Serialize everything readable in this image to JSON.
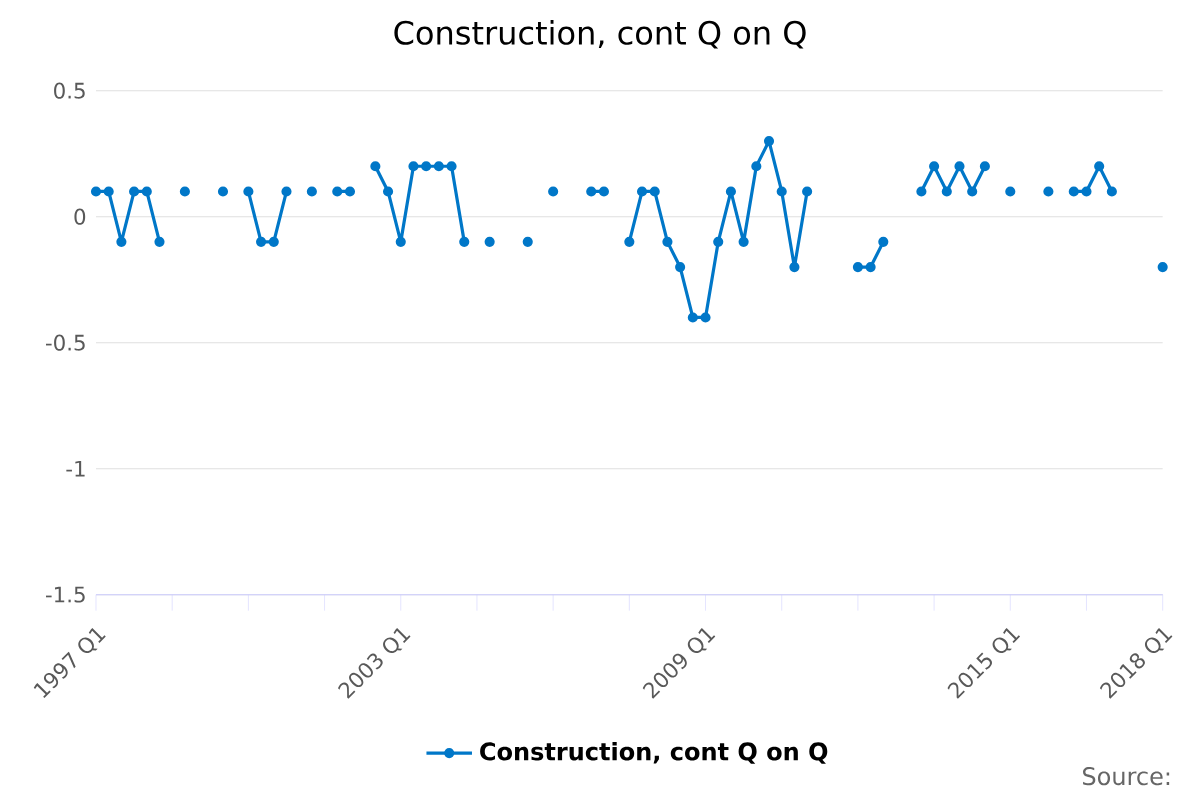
{
  "chart_data": {
    "type": "line",
    "title": "Construction, cont Q on Q",
    "x": [
      "1997-01",
      "1997-04",
      "1997-07",
      "1997-10",
      "1998-01",
      "1998-04",
      "1998-07",
      "1998-10",
      "1999-01",
      "1999-04",
      "1999-07",
      "1999-10",
      "2000-01",
      "2000-04",
      "2000-07",
      "2000-10",
      "2001-01",
      "2001-04",
      "2001-07",
      "2001-10",
      "2002-01",
      "2002-04",
      "2002-07",
      "2002-10",
      "2003-01",
      "2003-04",
      "2003-07",
      "2003-10",
      "2004-01",
      "2004-04",
      "2004-07",
      "2004-10",
      "2005-01",
      "2005-04",
      "2005-07",
      "2005-10",
      "2006-01",
      "2006-04",
      "2006-07",
      "2006-10",
      "2007-01",
      "2007-04",
      "2007-07",
      "2007-10",
      "2008-01",
      "2008-04",
      "2008-07",
      "2008-10",
      "2009-01",
      "2009-04",
      "2009-07",
      "2009-10",
      "2010-01",
      "2010-04",
      "2010-07",
      "2010-10",
      "2011-01",
      "2011-04",
      "2011-07",
      "2011-10",
      "2012-01",
      "2012-04",
      "2012-07",
      "2012-10",
      "2013-01",
      "2013-04",
      "2013-07",
      "2013-10",
      "2014-01",
      "2014-04",
      "2014-07",
      "2014-10",
      "2015-01",
      "2015-04",
      "2015-07",
      "2015-10",
      "2016-01",
      "2016-04",
      "2016-07",
      "2016-10",
      "2017-01",
      "2017-04",
      "2017-07",
      "2017-10",
      "2018-01"
    ],
    "series": [
      {
        "name": "Construction, cont Q on Q",
        "color": "#0077c8",
        "values": [
          0.1,
          0.1,
          -0.1,
          0.1,
          0.1,
          -0.1,
          null,
          0.1,
          null,
          null,
          0.1,
          null,
          0.1,
          -0.1,
          -0.1,
          0.1,
          null,
          0.1,
          null,
          0.1,
          0.1,
          null,
          0.2,
          0.1,
          -0.1,
          0.2,
          0.2,
          0.2,
          0.2,
          -0.1,
          null,
          -0.1,
          null,
          null,
          -0.1,
          null,
          0.1,
          null,
          null,
          0.1,
          0.1,
          null,
          -0.1,
          0.1,
          0.1,
          -0.1,
          -0.2,
          -0.4,
          -0.4,
          -0.1,
          0.1,
          -0.1,
          0.2,
          0.3,
          0.1,
          -0.2,
          0.1,
          null,
          null,
          null,
          -0.2,
          -0.2,
          -0.1,
          null,
          null,
          0.1,
          0.2,
          0.1,
          0.2,
          0.1,
          0.2,
          null,
          0.1,
          null,
          null,
          0.1,
          null,
          0.1,
          0.1,
          0.2,
          0.1,
          null,
          null,
          null,
          -0.2
        ]
      }
    ],
    "xlim": [
      "1997-01",
      "2018-01"
    ],
    "xticks": [
      {
        "value": "1997-01",
        "label": "1997 Q1"
      },
      {
        "value": "1998-07",
        "label": null
      },
      {
        "value": "2000-01",
        "label": null
      },
      {
        "value": "2001-07",
        "label": null
      },
      {
        "value": "2003-01",
        "label": "2003 Q1"
      },
      {
        "value": "2004-07",
        "label": null
      },
      {
        "value": "2006-01",
        "label": null
      },
      {
        "value": "2007-07",
        "label": null
      },
      {
        "value": "2009-01",
        "label": "2009 Q1"
      },
      {
        "value": "2010-07",
        "label": null
      },
      {
        "value": "2012-01",
        "label": null
      },
      {
        "value": "2013-07",
        "label": null
      },
      {
        "value": "2015-01",
        "label": "2015 Q1"
      },
      {
        "value": "2016-07",
        "label": null
      },
      {
        "value": "2018-01",
        "label": "2018 Q1"
      }
    ],
    "ylim": [
      -1.5,
      0.5
    ],
    "yticks": [
      -1.5,
      -1,
      -0.5,
      0,
      0.5
    ],
    "grid": "y",
    "legend": "bottom",
    "marker": "circle",
    "line_style": "solid",
    "annotations": [
      "Source:"
    ]
  }
}
